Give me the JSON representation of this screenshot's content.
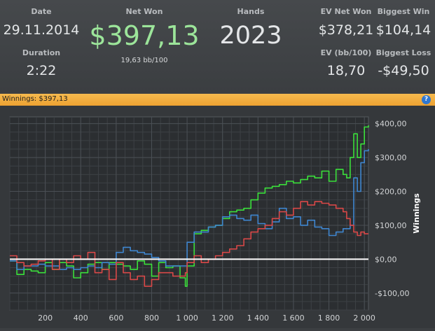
{
  "stats": {
    "date_label": "Date",
    "date": "29.11.2014",
    "duration_label": "Duration",
    "duration": "2:22",
    "net_won_label": "Net Won",
    "net_won": "$397,13",
    "bb_per_100": "19,63 bb/100",
    "hands_label": "Hands",
    "hands": "2023",
    "ev_net_won_label": "EV Net Won",
    "ev_net_won": "$378,21",
    "biggest_win_label": "Biggest Win",
    "biggest_win": "$104,14",
    "ev_bb_label": "EV (bb/100)",
    "ev_bb": "18,70",
    "biggest_loss_label": "Biggest Loss",
    "biggest_loss": "-$49,50"
  },
  "header_bar": {
    "title": "Winnings: $397,13",
    "help": "?"
  },
  "colors": {
    "accent_bar": "#f0a83a",
    "green": "#3be03b",
    "blue": "#3f86d0",
    "red": "#d94848",
    "zero_line": "#ffffff"
  },
  "chart_data": {
    "type": "line",
    "ylabel": "Winnings",
    "xlim": [
      0,
      2023
    ],
    "ylim": [
      -150,
      420
    ],
    "x_ticks": [
      200,
      400,
      600,
      800,
      1000,
      1200,
      1400,
      1600,
      1800,
      2000
    ],
    "x_tick_labels": [
      "200",
      "400",
      "600",
      "800",
      "1 000",
      "1 200",
      "1 400",
      "1 600",
      "1 800",
      "2 000"
    ],
    "y_ticks": [
      -100,
      0,
      100,
      200,
      300,
      400
    ],
    "y_tick_labels": [
      "-$100,00",
      "$0,00",
      "$100,00",
      "$200,00",
      "$300,00",
      "$400,00"
    ],
    "series": [
      {
        "color": "#3be03b",
        "x": [
          0,
          40,
          80,
          120,
          160,
          200,
          240,
          280,
          320,
          360,
          400,
          440,
          480,
          520,
          560,
          600,
          640,
          680,
          720,
          760,
          800,
          840,
          880,
          920,
          960,
          990,
          1000,
          1040,
          1080,
          1120,
          1160,
          1200,
          1240,
          1280,
          1320,
          1360,
          1400,
          1440,
          1480,
          1520,
          1560,
          1600,
          1640,
          1680,
          1720,
          1760,
          1800,
          1840,
          1880,
          1900,
          1920,
          1940,
          1960,
          1980,
          2000,
          2023
        ],
        "y": [
          -5,
          -45,
          -30,
          -35,
          -40,
          -10,
          -30,
          -10,
          -20,
          -55,
          -40,
          -15,
          -10,
          -30,
          -10,
          -15,
          -20,
          -30,
          -5,
          -15,
          -50,
          -10,
          -25,
          -20,
          -55,
          -80,
          -20,
          75,
          85,
          95,
          100,
          120,
          140,
          145,
          150,
          175,
          195,
          210,
          215,
          220,
          230,
          225,
          235,
          245,
          240,
          260,
          230,
          265,
          250,
          240,
          300,
          370,
          300,
          340,
          390,
          395
        ]
      },
      {
        "color": "#3f86d0",
        "x": [
          0,
          40,
          80,
          120,
          160,
          200,
          240,
          280,
          320,
          360,
          400,
          440,
          480,
          520,
          560,
          600,
          640,
          680,
          720,
          760,
          800,
          840,
          880,
          920,
          960,
          990,
          1000,
          1040,
          1080,
          1120,
          1160,
          1200,
          1240,
          1280,
          1320,
          1360,
          1400,
          1440,
          1480,
          1520,
          1560,
          1600,
          1640,
          1680,
          1720,
          1760,
          1800,
          1840,
          1880,
          1900,
          1920,
          1940,
          1960,
          1980,
          2000,
          2023
        ],
        "y": [
          -5,
          -30,
          -20,
          -20,
          -15,
          -20,
          -20,
          -30,
          -25,
          -30,
          -25,
          -20,
          -25,
          -10,
          -15,
          20,
          35,
          25,
          20,
          15,
          5,
          -5,
          -20,
          -20,
          -20,
          -20,
          50,
          80,
          80,
          95,
          100,
          125,
          130,
          120,
          115,
          130,
          105,
          90,
          110,
          150,
          120,
          125,
          100,
          115,
          95,
          90,
          70,
          80,
          90,
          90,
          100,
          240,
          200,
          285,
          320,
          325
        ]
      },
      {
        "color": "#d94848",
        "x": [
          0,
          40,
          80,
          120,
          160,
          200,
          240,
          280,
          320,
          360,
          400,
          440,
          480,
          520,
          560,
          600,
          640,
          680,
          720,
          760,
          800,
          840,
          880,
          920,
          960,
          990,
          1000,
          1040,
          1080,
          1120,
          1160,
          1200,
          1240,
          1280,
          1320,
          1360,
          1400,
          1440,
          1480,
          1520,
          1560,
          1600,
          1640,
          1680,
          1720,
          1760,
          1800,
          1840,
          1880,
          1900,
          1920,
          1940,
          1960,
          1980,
          2000,
          2023
        ],
        "y": [
          10,
          -10,
          -20,
          -15,
          -5,
          0,
          -30,
          0,
          -10,
          10,
          0,
          20,
          -40,
          -30,
          -60,
          -10,
          -40,
          -60,
          -50,
          -80,
          -60,
          -40,
          -40,
          -50,
          -50,
          -40,
          -10,
          10,
          -10,
          0,
          10,
          20,
          30,
          40,
          60,
          80,
          90,
          100,
          120,
          140,
          130,
          150,
          170,
          160,
          170,
          165,
          160,
          150,
          140,
          120,
          100,
          80,
          70,
          80,
          75,
          75
        ]
      }
    ]
  }
}
